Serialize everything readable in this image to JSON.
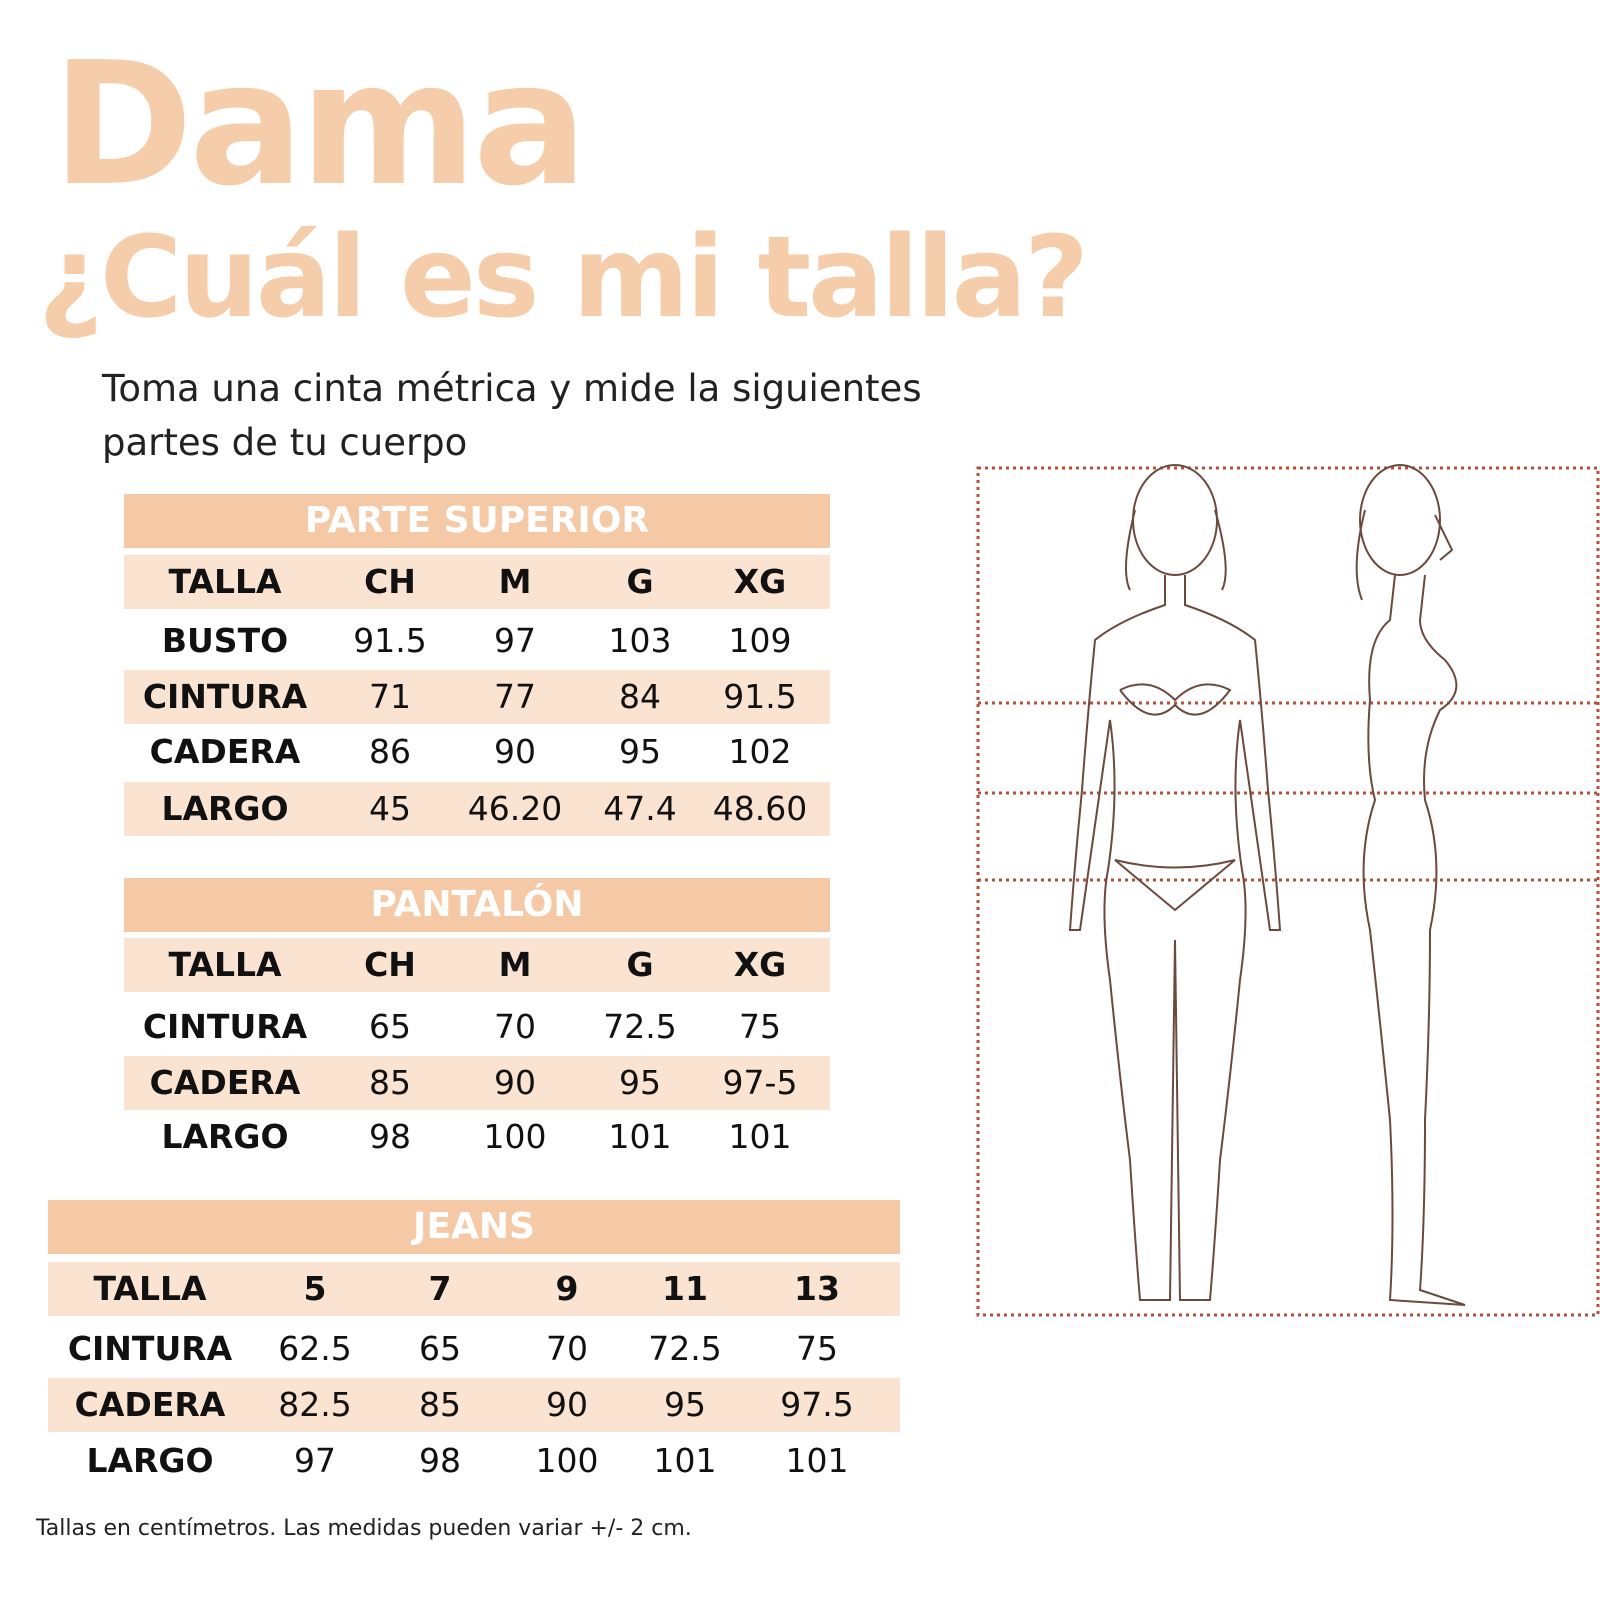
{
  "title": "Dama",
  "subtitle": "¿Cuál es mi talla?",
  "intro": "Toma una cinta métrica y mide la siguientes partes de tu cuerpo",
  "colors": {
    "title": "#f6cdaa",
    "band": "#f5c9a6",
    "row_shade": "#fbe3d2",
    "guide_lines": "#b0523a"
  },
  "tables": [
    {
      "title": "PARTE SUPERIOR",
      "header": [
        "TALLA",
        "CH",
        "M",
        "G",
        "XG"
      ],
      "rows": [
        [
          "BUSTO",
          "91.5",
          "97",
          "103",
          "109"
        ],
        [
          "CINTURA",
          "71",
          "77",
          "84",
          "91.5"
        ],
        [
          "CADERA",
          "86",
          "90",
          "95",
          "102"
        ],
        [
          "LARGO",
          "45",
          "46.20",
          "47.4",
          "48.60"
        ]
      ]
    },
    {
      "title": "PANTALÓN",
      "header": [
        "TALLA",
        "CH",
        "M",
        "G",
        "XG"
      ],
      "rows": [
        [
          "CINTURA",
          "65",
          "70",
          "72.5",
          "75"
        ],
        [
          "CADERA",
          "85",
          "90",
          "95",
          "97-5"
        ],
        [
          "LARGO",
          "98",
          "100",
          "101",
          "101"
        ]
      ]
    },
    {
      "title": "JEANS",
      "header": [
        "TALLA",
        "5",
        "7",
        "9",
        "11",
        "13"
      ],
      "rows": [
        [
          "CINTURA",
          "62.5",
          "65",
          "70",
          "72.5",
          "75"
        ],
        [
          "CADERA",
          "82.5",
          "85",
          "90",
          "95",
          "97.5"
        ],
        [
          "LARGO",
          "97",
          "98",
          "100",
          "101",
          "101"
        ]
      ]
    }
  ],
  "footnote": "Tallas en centímetros. Las medidas pueden variar +/- 2 cm."
}
